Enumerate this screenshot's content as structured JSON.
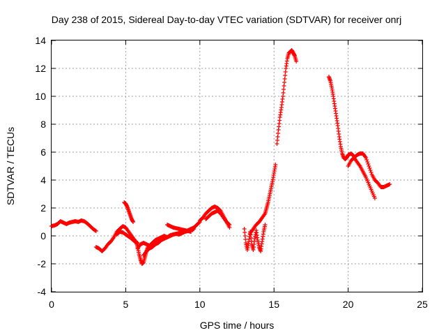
{
  "chart_data": {
    "type": "scatter",
    "title": "Day 238 of 2015, Sidereal Day-to-day VTEC variation (SDTVAR) for receiver onrj",
    "xlabel": "GPS time / hours",
    "ylabel": "SDTVAR / TECUs",
    "xlim": [
      0,
      25
    ],
    "ylim": [
      -4,
      14
    ],
    "x_ticks": [
      "0",
      "5",
      "10",
      "15",
      "20",
      "25"
    ],
    "y_ticks": [
      "-4",
      "-2",
      "0",
      "2",
      "4",
      "6",
      "8",
      "10",
      "12",
      "14"
    ],
    "grid": true,
    "legend": "none",
    "marker": "+",
    "color": "#ff0000",
    "series": [
      {
        "x": [
          0.0,
          0.2,
          0.4,
          0.6,
          0.8,
          1.0,
          1.2,
          1.4,
          1.6,
          1.8,
          2.0,
          2.2,
          2.4,
          2.6,
          2.8,
          3.0
        ],
        "y": [
          0.7,
          0.75,
          0.85,
          1.05,
          0.95,
          0.85,
          0.95,
          1.0,
          1.05,
          1.0,
          1.1,
          1.05,
          0.9,
          0.7,
          0.5,
          0.35
        ]
      },
      {
        "x": [
          3.0,
          3.2,
          3.4,
          3.6,
          3.8,
          4.0,
          4.2,
          4.4,
          4.6,
          4.8,
          5.0,
          5.2,
          5.4,
          5.6,
          5.8
        ],
        "y": [
          -0.8,
          -0.9,
          -1.1,
          -0.9,
          -0.6,
          -0.4,
          -0.1,
          0.3,
          0.5,
          0.7,
          0.6,
          0.3,
          0.0,
          -0.3,
          -0.6
        ]
      },
      {
        "x": [
          4.9,
          5.0,
          5.1,
          5.2,
          5.3,
          5.4,
          5.5
        ],
        "y": [
          2.4,
          2.3,
          2.1,
          1.8,
          1.5,
          1.2,
          1.0
        ]
      },
      {
        "x": [
          4.4,
          4.6,
          4.8,
          5.0,
          5.2,
          5.4,
          5.6,
          5.8
        ],
        "y": [
          0.1,
          0.3,
          0.25,
          0.1,
          -0.05,
          -0.2,
          -0.4,
          -0.5
        ]
      },
      {
        "x": [
          5.7,
          5.8,
          5.9,
          6.0,
          6.1,
          6.2,
          6.3,
          6.4,
          6.5
        ],
        "y": [
          -0.4,
          -0.8,
          -1.3,
          -1.7,
          -2.0,
          -1.9,
          -1.5,
          -1.1,
          -0.8
        ]
      },
      {
        "x": [
          5.8,
          6.0,
          6.2,
          6.4,
          6.6,
          6.8,
          7.0,
          7.2,
          7.4,
          7.6,
          7.8,
          8.0,
          8.2,
          8.4,
          8.6,
          8.8,
          9.0,
          9.2,
          9.4,
          9.6,
          9.8,
          10.0
        ],
        "y": [
          -0.9,
          -0.6,
          -0.5,
          -0.6,
          -0.7,
          -0.5,
          -0.3,
          -0.2,
          -0.1,
          0.0,
          -0.1,
          0.05,
          0.1,
          0.15,
          0.1,
          0.2,
          0.3,
          0.4,
          0.5,
          0.6,
          0.8,
          1.0
        ]
      },
      {
        "x": [
          6.2,
          6.4,
          6.6,
          6.8,
          7.0,
          7.2,
          7.4,
          7.6,
          7.8,
          8.0,
          8.2,
          8.4,
          8.6,
          8.8,
          9.0,
          9.2,
          9.4,
          9.6
        ],
        "y": [
          -1.4,
          -1.1,
          -0.9,
          -0.8,
          -0.6,
          -0.5,
          -0.3,
          -0.2,
          -0.1,
          0.0,
          0.1,
          0.15,
          0.2,
          0.25,
          0.3,
          0.35,
          0.4,
          0.5
        ]
      },
      {
        "x": [
          7.8,
          8.0,
          8.2,
          8.4,
          8.6,
          8.8,
          9.0,
          9.2,
          9.4
        ],
        "y": [
          0.8,
          0.7,
          0.6,
          0.55,
          0.5,
          0.45,
          0.4,
          0.35,
          0.3
        ]
      },
      {
        "x": [
          10.0,
          10.2,
          10.4,
          10.6,
          10.8,
          11.0,
          11.2,
          11.4,
          11.6,
          11.8,
          12.0
        ],
        "y": [
          1.1,
          1.3,
          1.6,
          1.8,
          2.0,
          2.1,
          2.0,
          1.8,
          1.4,
          1.0,
          0.6
        ]
      },
      {
        "x": [
          10.4,
          10.6,
          10.8,
          11.0,
          11.2,
          11.4,
          11.6,
          11.8,
          12.0
        ],
        "y": [
          1.2,
          1.4,
          1.6,
          1.7,
          1.8,
          1.6,
          1.3,
          1.0,
          0.8
        ]
      },
      {
        "x": [
          13.0,
          13.1,
          13.2,
          13.3,
          13.4,
          13.5,
          13.6,
          13.7,
          13.8,
          13.9,
          14.0,
          14.1,
          14.2,
          14.3,
          14.4
        ],
        "y": [
          0.5,
          -0.5,
          -1.0,
          -0.4,
          0.3,
          -0.6,
          -1.0,
          -0.2,
          0.4,
          -0.3,
          -0.8,
          -1.1,
          -0.4,
          0.3,
          0.8
        ]
      },
      {
        "x": [
          13.4,
          13.6,
          13.8,
          14.0,
          14.2,
          14.4,
          14.5,
          14.6,
          14.7,
          14.8,
          14.9,
          15.0,
          15.1
        ],
        "y": [
          0.2,
          0.5,
          0.8,
          1.0,
          1.3,
          1.6,
          2.0,
          2.4,
          2.9,
          3.4,
          3.9,
          4.5,
          5.1
        ]
      },
      {
        "x": [
          15.2,
          15.3,
          15.4,
          15.5,
          15.6,
          15.7,
          15.8,
          15.9,
          16.0,
          16.1,
          16.2,
          16.3,
          16.4,
          16.5
        ],
        "y": [
          6.6,
          7.6,
          8.5,
          9.2,
          10.0,
          11.0,
          12.0,
          12.7,
          13.1,
          13.2,
          13.3,
          13.1,
          12.9,
          12.5
        ]
      },
      {
        "x": [
          18.7,
          18.8,
          18.9,
          19.0,
          19.1,
          19.2,
          19.3,
          19.4,
          19.5,
          19.6,
          19.7,
          19.8,
          19.9,
          20.0,
          20.2,
          20.4
        ],
        "y": [
          11.4,
          11.1,
          10.6,
          10.0,
          9.3,
          8.6,
          7.9,
          7.1,
          6.4,
          5.9,
          5.6,
          5.5,
          5.6,
          5.8,
          5.9,
          5.7
        ]
      },
      {
        "x": [
          20.0,
          20.2,
          20.4,
          20.6,
          20.8,
          21.0,
          21.2,
          21.4,
          21.6,
          21.8,
          22.0,
          22.2,
          22.4,
          22.6,
          22.8
        ],
        "y": [
          5.0,
          5.4,
          5.6,
          5.8,
          5.9,
          5.9,
          5.6,
          5.0,
          4.4,
          4.0,
          3.8,
          3.5,
          3.5,
          3.6,
          3.7
        ]
      },
      {
        "x": [
          20.4,
          20.6,
          20.8,
          21.0,
          21.2,
          21.4,
          21.6,
          21.8
        ],
        "y": [
          5.6,
          5.3,
          5.0,
          4.6,
          4.2,
          3.7,
          3.2,
          2.7
        ]
      }
    ]
  }
}
